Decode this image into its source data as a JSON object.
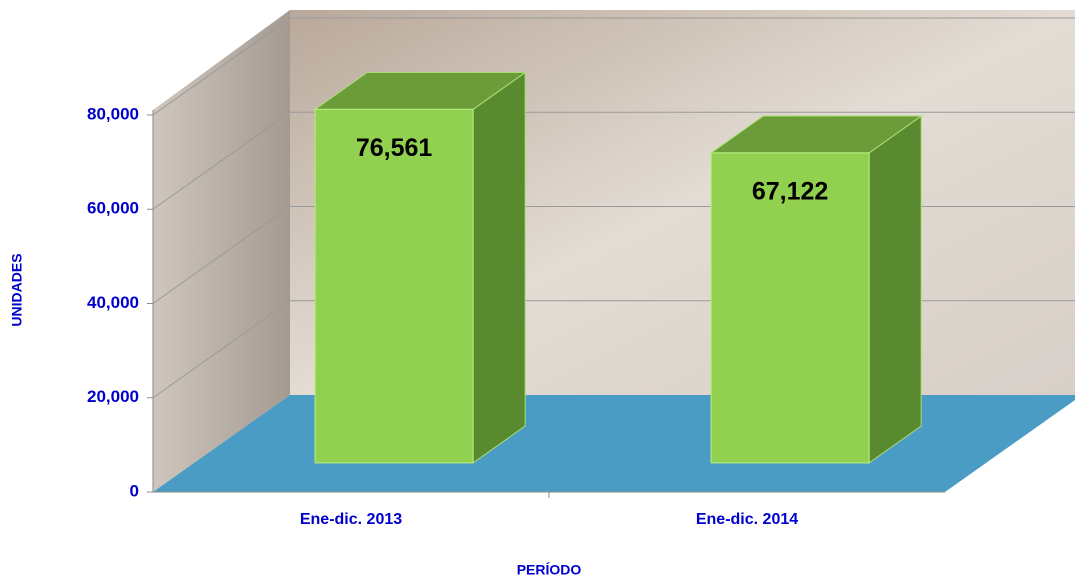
{
  "chart_data": {
    "type": "bar3d",
    "xlabel": "PERÍODO",
    "ylabel": "UNIDADES",
    "categories": [
      "Ene-dic. 2013",
      "Ene-dic. 2014"
    ],
    "values": [
      76561,
      67122
    ],
    "value_labels": [
      "76,561",
      "67,122"
    ],
    "color": "#92d050",
    "ylim": [
      0,
      80000
    ],
    "yticks": [
      0,
      {
        "value": 20000,
        "label": "20,000"
      },
      {
        "value": 40000,
        "label": "40,000"
      },
      {
        "value": 60000,
        "label": "60,000"
      },
      {
        "value": 80000,
        "label": "80,000"
      }
    ],
    "grid": true
  }
}
